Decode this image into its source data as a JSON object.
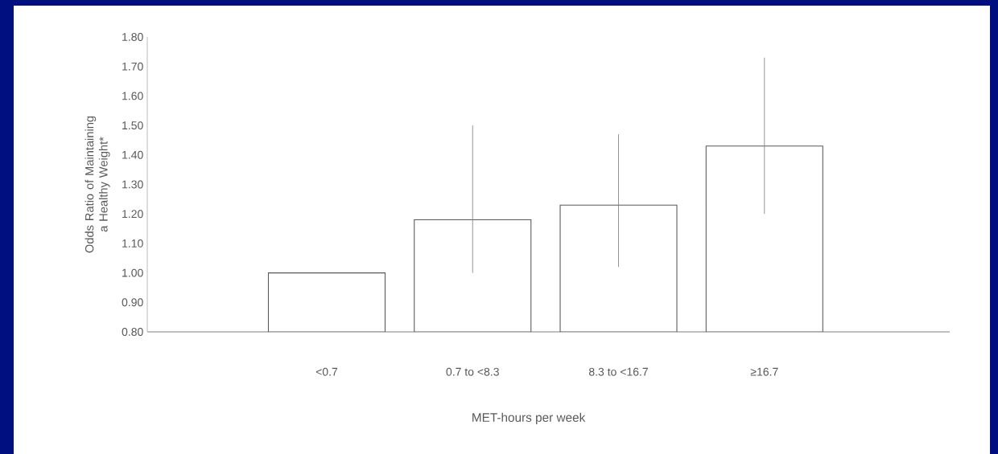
{
  "chart_data": {
    "type": "bar",
    "xlabel": "MET-hours per week",
    "ylabel": "Odds Ratio of Maintaining a Healthy Weight*",
    "categories": [
      "<0.7",
      "0.7 to <8.3",
      "8.3 to <16.7",
      "≥16.7"
    ],
    "values": [
      1.0,
      1.18,
      1.23,
      1.43
    ],
    "errors": [
      null,
      [
        1.0,
        1.5
      ],
      [
        1.02,
        1.47
      ],
      [
        1.2,
        1.73
      ]
    ],
    "color": "#ffffff",
    "ylim": [
      0.8,
      1.8
    ],
    "yticks": [
      {
        "value": 0.8,
        "label": "0.80"
      },
      {
        "value": 0.9,
        "label": "0.90"
      },
      {
        "value": 1.0,
        "label": "1.00"
      },
      {
        "value": 1.1,
        "label": "1.10"
      },
      {
        "value": 1.2,
        "label": "1.20"
      },
      {
        "value": 1.3,
        "label": "1.30"
      },
      {
        "value": 1.4,
        "label": "1.40"
      },
      {
        "value": 1.5,
        "label": "1.50"
      },
      {
        "value": 1.6,
        "label": "1.60"
      },
      {
        "value": 1.7,
        "label": "1.70"
      },
      {
        "value": 1.8,
        "label": "1.80"
      }
    ],
    "grid": false
  }
}
